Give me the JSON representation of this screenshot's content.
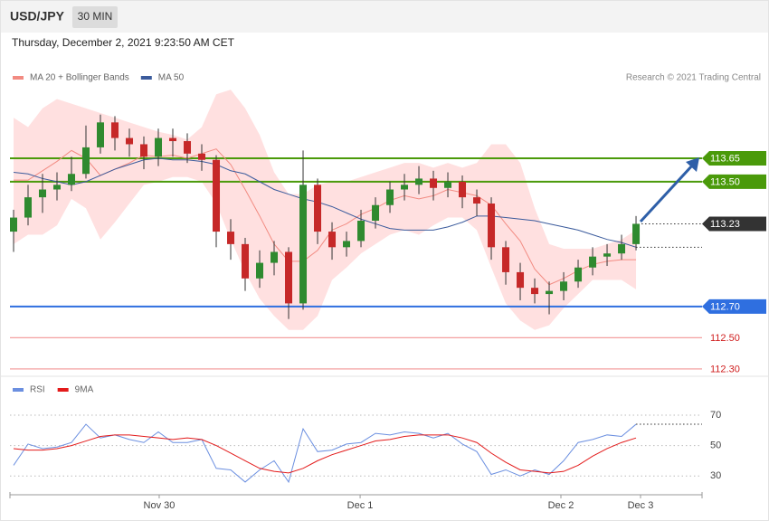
{
  "header": {
    "symbol": "USD/JPY",
    "interval": "30 MIN",
    "timestamp": "Thursday, December 2, 2021 9:23:50 AM CET"
  },
  "chart_data": [
    {
      "type": "candlestick",
      "credit": "Research © 2021 Trading Central",
      "xlim": [
        -0.25,
        47.56
      ],
      "ylim": [
        112.25,
        114.25
      ],
      "up_color": "#2f8a2f",
      "down_color": "#c62828",
      "open": [
        113.18,
        113.27,
        113.4,
        113.45,
        113.48,
        113.55,
        113.72,
        113.88,
        113.78,
        113.74,
        113.66,
        113.78,
        113.76,
        113.68,
        113.64,
        113.18,
        113.1,
        112.88,
        112.98,
        113.05,
        112.72,
        113.48,
        113.18,
        113.08,
        113.12,
        113.25,
        113.35,
        113.45,
        113.48,
        113.52,
        113.46,
        113.5,
        113.4,
        113.36,
        113.08,
        112.92,
        112.82,
        112.78,
        112.8,
        112.86,
        112.95,
        113.02,
        113.04,
        113.1
      ],
      "high": [
        113.32,
        113.48,
        113.55,
        113.56,
        113.66,
        113.86,
        113.93,
        113.92,
        113.84,
        113.79,
        113.84,
        113.84,
        113.81,
        113.74,
        113.67,
        113.26,
        113.14,
        113.06,
        113.12,
        113.08,
        113.7,
        113.52,
        113.24,
        113.18,
        113.32,
        113.4,
        113.5,
        113.55,
        113.6,
        113.57,
        113.56,
        113.54,
        113.45,
        113.4,
        113.12,
        112.98,
        112.88,
        112.86,
        112.92,
        113.0,
        113.08,
        113.1,
        113.16,
        113.28
      ],
      "low": [
        113.05,
        113.22,
        113.3,
        113.38,
        113.44,
        113.52,
        113.68,
        113.7,
        113.66,
        113.58,
        113.6,
        113.66,
        113.62,
        113.57,
        113.08,
        113.0,
        112.8,
        112.82,
        112.9,
        112.62,
        112.68,
        113.1,
        113.0,
        113.02,
        113.08,
        113.2,
        113.3,
        113.38,
        113.42,
        113.38,
        113.4,
        113.33,
        113.28,
        113.0,
        112.84,
        112.74,
        112.72,
        112.65,
        112.74,
        112.82,
        112.9,
        112.96,
        113.0,
        113.06
      ],
      "close": [
        113.27,
        113.4,
        113.45,
        113.48,
        113.55,
        113.72,
        113.88,
        113.78,
        113.74,
        113.66,
        113.78,
        113.76,
        113.68,
        113.64,
        113.18,
        113.1,
        112.88,
        112.98,
        113.05,
        112.72,
        113.48,
        113.18,
        113.08,
        113.12,
        113.25,
        113.35,
        113.45,
        113.48,
        113.52,
        113.46,
        113.5,
        113.4,
        113.36,
        113.08,
        112.92,
        112.82,
        112.78,
        112.8,
        112.86,
        112.95,
        113.02,
        113.04,
        113.1,
        113.23
      ],
      "series": [
        {
          "name": "MA 20 + Bollinger Bands",
          "color": "#f28b82",
          "band_color": "#ffe0e0",
          "values": [
            113.51,
            113.51,
            113.57,
            113.63,
            113.7,
            113.65,
            113.54,
            113.58,
            113.62,
            113.67,
            113.66,
            113.67,
            113.65,
            113.68,
            113.71,
            113.61,
            113.45,
            113.28,
            113.1,
            112.99,
            112.99,
            113.06,
            113.19,
            113.23,
            113.29,
            113.33,
            113.38,
            113.41,
            113.39,
            113.41,
            113.45,
            113.43,
            113.41,
            113.35,
            113.23,
            113.12,
            112.94,
            112.84,
            112.88,
            112.93,
            112.97,
            112.99,
            113.0,
            113.0
          ],
          "upper": [
            113.91,
            113.85,
            113.97,
            114.03,
            114.0,
            113.97,
            113.94,
            113.91,
            113.88,
            113.85,
            113.82,
            113.8,
            113.77,
            113.85,
            114.06,
            114.09,
            113.97,
            113.8,
            113.56,
            113.42,
            113.42,
            113.48,
            113.5,
            113.5,
            113.53,
            113.56,
            113.59,
            113.62,
            113.62,
            113.59,
            113.62,
            113.59,
            113.62,
            113.74,
            113.74,
            113.62,
            113.33,
            113.1,
            113.07,
            113.07,
            113.07,
            113.1,
            113.13,
            113.19
          ],
          "lower": [
            113.1,
            113.16,
            113.16,
            113.22,
            113.39,
            113.33,
            113.13,
            113.24,
            113.36,
            113.48,
            113.5,
            113.53,
            113.53,
            113.5,
            113.36,
            113.13,
            112.92,
            112.75,
            112.64,
            112.55,
            112.55,
            112.64,
            112.87,
            112.95,
            113.04,
            113.1,
            113.16,
            113.19,
            113.16,
            113.22,
            113.27,
            113.27,
            113.19,
            112.95,
            112.72,
            112.61,
            112.55,
            112.58,
            112.69,
            112.78,
            112.87,
            112.87,
            112.87,
            112.81
          ]
        },
        {
          "name": "MA 50",
          "color": "#3b5b9c",
          "values": [
            113.56,
            113.55,
            113.52,
            113.5,
            113.48,
            113.5,
            113.54,
            113.58,
            113.61,
            113.64,
            113.65,
            113.64,
            113.64,
            113.63,
            113.61,
            113.57,
            113.55,
            113.5,
            113.45,
            113.42,
            113.39,
            113.37,
            113.34,
            113.3,
            113.26,
            113.23,
            113.2,
            113.19,
            113.19,
            113.19,
            113.21,
            113.24,
            113.28,
            113.28,
            113.27,
            113.26,
            113.25,
            113.23,
            113.21,
            113.19,
            113.16,
            113.13,
            113.11,
            113.08
          ]
        }
      ],
      "levels": [
        {
          "value": 113.65,
          "label": "113.65",
          "color": "#4a9a0a",
          "line": "solid",
          "tag": true
        },
        {
          "value": 113.5,
          "label": "113.50",
          "color": "#4a9a0a",
          "line": "solid",
          "tag": true
        },
        {
          "value": 113.23,
          "label": "113.23",
          "color": "#333333",
          "line": "dotted",
          "tag": true
        },
        {
          "value": 112.7,
          "label": "112.70",
          "color": "#2f6fe0",
          "line": "solid",
          "tag": true
        },
        {
          "value": 112.5,
          "label": "112.50",
          "color": "#f4a0a0",
          "line": "solid",
          "tag": false
        },
        {
          "value": 112.3,
          "label": "112.30",
          "color": "#f4a0a0",
          "line": "solid",
          "tag": false
        }
      ]
    },
    {
      "type": "line",
      "xlim": [
        -0.25,
        47.56
      ],
      "ylim": [
        20,
        92
      ],
      "yticks": [
        70,
        50,
        30
      ],
      "grid": true,
      "xticks": [
        {
          "value": 10.06,
          "label": "Nov 30"
        },
        {
          "value": 23.94,
          "label": "Dec 1"
        },
        {
          "value": 37.81,
          "label": "Dec 2"
        },
        {
          "value": 43.31,
          "label": "Dec 3"
        }
      ],
      "series": [
        {
          "name": "RSI",
          "color": "#6b8fe0",
          "values": [
            37,
            51,
            48,
            49,
            52,
            64,
            55,
            57,
            54,
            52,
            59,
            52,
            52,
            54,
            35,
            34,
            26,
            34,
            40,
            26,
            61,
            46,
            47,
            51,
            52,
            58,
            57,
            59,
            58,
            55,
            58,
            51,
            46,
            31,
            34,
            30,
            34,
            31,
            40,
            52,
            54,
            57,
            56,
            64
          ]
        },
        {
          "name": "9MA",
          "color": "#e31a1a",
          "values": [
            48,
            47,
            47,
            48,
            50,
            53,
            56,
            57,
            57,
            56,
            55,
            54,
            55,
            54,
            50,
            45,
            40,
            35,
            33,
            32,
            35,
            40,
            44,
            47,
            50,
            53,
            54,
            56,
            57,
            57,
            57,
            55,
            52,
            45,
            39,
            34,
            33,
            32,
            33,
            37,
            43,
            48,
            52,
            55
          ]
        }
      ]
    }
  ]
}
